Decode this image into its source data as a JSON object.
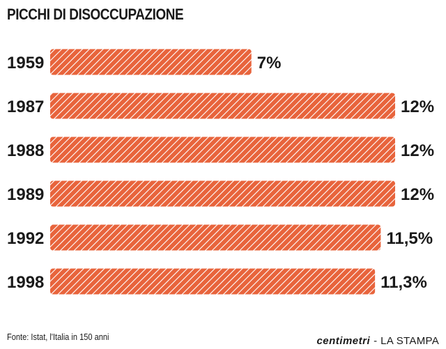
{
  "title": "PICCHI DI DISOCCUPAZIONE",
  "source": "Fonte: Istat, l'Italia in 150 anni",
  "brand": {
    "left": "centimetri",
    "separator": "-",
    "right": "LA STAMPA"
  },
  "colors": {
    "bar": "#e8643c",
    "stripe": "#ffffff",
    "text": "#1a1a1a"
  },
  "chart_data": {
    "type": "bar",
    "orientation": "horizontal",
    "title": "PICCHI DI DISOCCUPAZIONE",
    "categories": [
      "1959",
      "1987",
      "1988",
      "1989",
      "1992",
      "1998"
    ],
    "values": [
      7,
      12,
      12,
      12,
      11.5,
      11.3
    ],
    "value_labels": [
      "7%",
      "12%",
      "12%",
      "12%",
      "11,5%",
      "11,3%"
    ],
    "unit": "%",
    "xlim": [
      0,
      12
    ],
    "grid": false,
    "legend": "none"
  }
}
